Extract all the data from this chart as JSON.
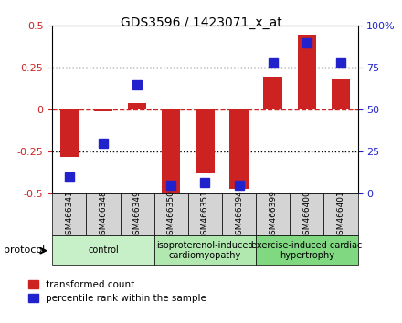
{
  "title": "GDS3596 / 1423071_x_at",
  "samples": [
    "GSM466341",
    "GSM466348",
    "GSM466349",
    "GSM466350",
    "GSM466351",
    "GSM466394",
    "GSM466399",
    "GSM466400",
    "GSM466401"
  ],
  "red_values": [
    -0.28,
    -0.01,
    0.04,
    -0.5,
    -0.38,
    -0.47,
    0.2,
    0.45,
    0.18
  ],
  "blue_values": [
    10,
    30,
    65,
    5,
    7,
    5,
    78,
    90,
    78
  ],
  "ylim_left": [
    -0.5,
    0.5
  ],
  "ylim_right": [
    0,
    100
  ],
  "yticks_left": [
    -0.5,
    -0.25,
    0,
    0.25,
    0.5
  ],
  "yticks_right": [
    0,
    25,
    50,
    75,
    100
  ],
  "ytick_left_labels": [
    "-0.5",
    "-0.25",
    "0",
    "0.25",
    "0.5"
  ],
  "ytick_right_labels": [
    "0",
    "25",
    "50",
    "75",
    "100%"
  ],
  "red_color": "#cc2222",
  "blue_color": "#2222cc",
  "dotted_lines": [
    -0.25,
    0.25
  ],
  "groups": [
    {
      "label": "control",
      "start": 0,
      "end": 3,
      "color": "#c8f0c8"
    },
    {
      "label": "isoproterenol-induced\ncardiomyopathy",
      "start": 3,
      "end": 6,
      "color": "#b0e8b0"
    },
    {
      "label": "exercise-induced cardiac\nhypertrophy",
      "start": 6,
      "end": 9,
      "color": "#80d880"
    }
  ],
  "protocol_label": "protocol",
  "legend_red": "transformed count",
  "legend_blue": "percentile rank within the sample",
  "bar_width": 0.55,
  "blue_marker_size": 7,
  "title_fontsize": 10,
  "axis_fontsize": 8,
  "sample_fontsize": 6.5,
  "group_fontsize": 7,
  "legend_fontsize": 7.5
}
